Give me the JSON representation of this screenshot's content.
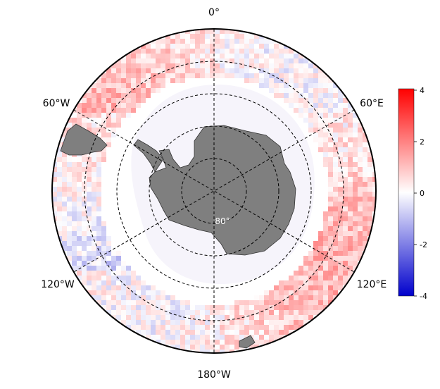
{
  "map": {
    "projection": "south-polar-stereographic",
    "longitude_labels": {
      "top": "0°",
      "upper_right": "60°E",
      "lower_right": "120°E",
      "bottom": "180°W",
      "lower_left": "120°W",
      "upper_left": "60°W"
    },
    "latitude_label": "80°",
    "land_color": "#7f7f7f",
    "ice_mask_color": "#f6f4fb"
  },
  "colorbar": {
    "ticks": [
      "4",
      "2",
      "0",
      "-2",
      "-4"
    ],
    "min": -4,
    "max": 4,
    "colors": {
      "high": "#ff0000",
      "mid": "#ffffff",
      "low": "#0000cc"
    }
  }
}
